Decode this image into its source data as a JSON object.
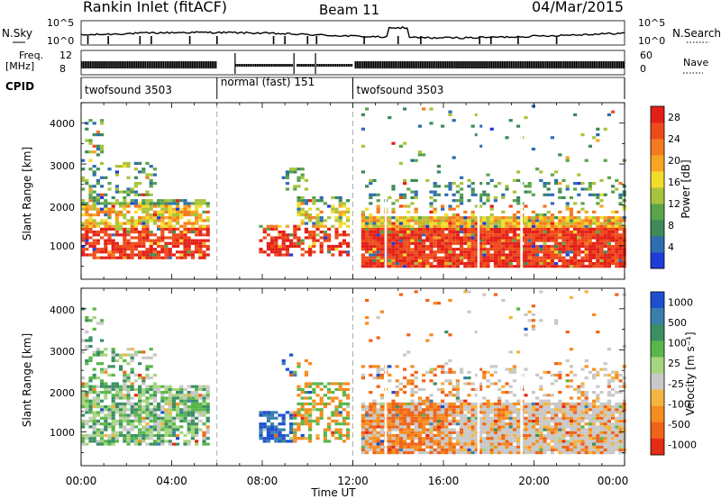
{
  "header": {
    "title": "Rankin Inlet (fitACF)",
    "beam": "Beam 11",
    "date": "04/Mar/2015"
  },
  "status_panels": {
    "nsky_label": "N.Sky",
    "nsearch_label": "N.Search",
    "noise_ticks": [
      "10^5",
      "10^0"
    ],
    "freq_label": [
      "Freq.",
      "[MHz]"
    ],
    "freq_ticks": [
      "8",
      "12"
    ],
    "nave_label": "Nave",
    "nave_ticks": [
      "60",
      "0"
    ],
    "cpid_label": "CPID",
    "cpid_segments": [
      {
        "name": "twofsound 3503",
        "start_hour": 0,
        "end_hour": 6
      },
      {
        "name": "normal (fast) 151",
        "start_hour": 6,
        "end_hour": 12
      },
      {
        "name": "twofsound 3503",
        "start_hour": 12,
        "end_hour": 24
      }
    ]
  },
  "chart_data": [
    {
      "type": "heatmap",
      "parameter": "Power",
      "ylabel": "Slant Range [km]",
      "ylim": [
        180,
        4500
      ],
      "yticks": [
        1000,
        2000,
        3000,
        4000
      ],
      "xlim": [
        0,
        24
      ],
      "colorbar": {
        "label": "Power [dB]",
        "ticks": [
          "4",
          "8",
          "12",
          "16",
          "20",
          "24",
          "28"
        ],
        "colors": [
          "#1f3cd8",
          "#2f6db0",
          "#3e8a5a",
          "#5aa44a",
          "#a8c43c",
          "#f2dd2a",
          "#f6a623",
          "#f47a1f",
          "#ee4b1b",
          "#e32018"
        ]
      }
    },
    {
      "type": "heatmap",
      "parameter": "Velocity",
      "ylabel": "Slant Range [km]",
      "ylim": [
        180,
        4500
      ],
      "yticks": [
        1000,
        2000,
        3000,
        4000
      ],
      "xlim": [
        0,
        24
      ],
      "xlabel": "Time UT",
      "xticks": [
        "00:00",
        "04:00",
        "08:00",
        "12:00",
        "16:00",
        "20:00",
        "00:00"
      ],
      "colorbar": {
        "label": "Velocity [m s⁻¹]",
        "ticks": [
          "1000",
          "500",
          "100",
          "25",
          "-25",
          "-100",
          "-500",
          "-1000"
        ],
        "colors": [
          "#1d4fd0",
          "#3a7fae",
          "#3c8f62",
          "#59b64a",
          "#a5d57f",
          "#c8c8c8",
          "#f5b441",
          "#f58d1f",
          "#f06318",
          "#e52c14"
        ]
      }
    }
  ]
}
